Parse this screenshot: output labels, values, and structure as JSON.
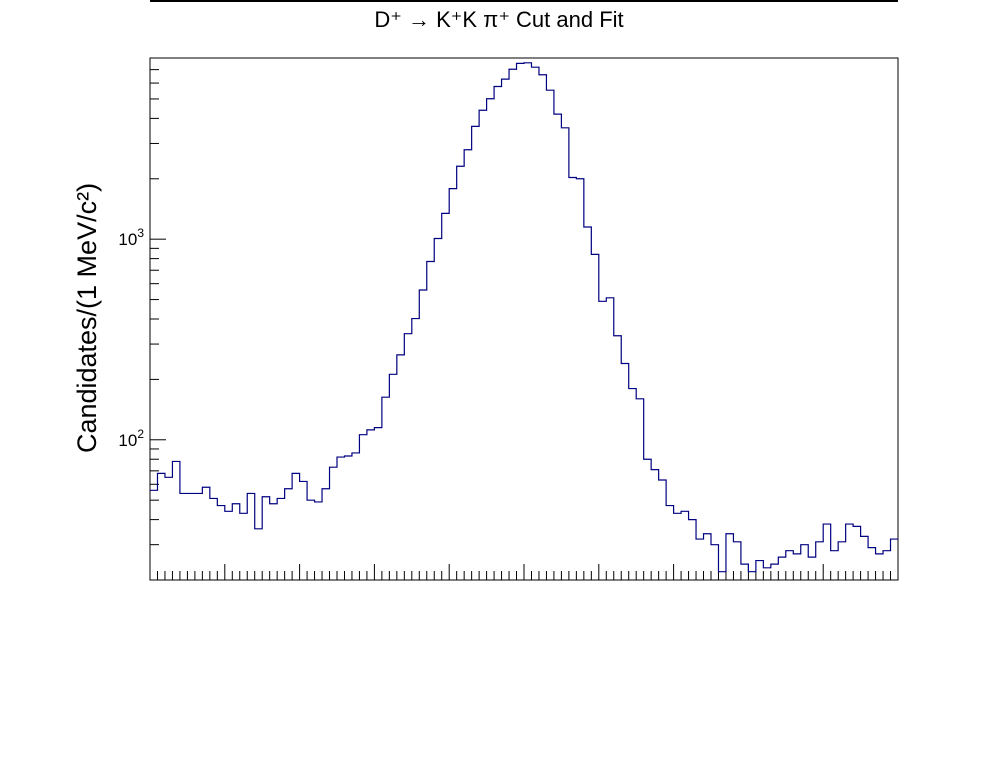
{
  "chart_data": {
    "type": "histogram",
    "title": "D⁺ → K⁺K π⁺ Cut and Fit",
    "ylabel": "Candidates/(1 MeV/c²)",
    "xlabel": "",
    "yscale": "log",
    "ylim": [
      20,
      8000
    ],
    "y_tick_labels": [
      {
        "value": 100,
        "base": "10",
        "exp": "2"
      },
      {
        "value": 1000,
        "base": "10",
        "exp": "3"
      }
    ],
    "x_tick_labels": [],
    "grid": false,
    "line_color": "#000080",
    "bin_count": 100,
    "values": [
      56,
      68,
      65,
      78,
      54,
      54,
      54,
      58,
      51,
      47,
      44,
      48,
      43,
      54,
      36,
      52,
      48,
      51,
      57,
      68,
      62,
      50,
      49,
      57,
      73,
      82,
      83,
      86,
      106,
      112,
      115,
      163,
      212,
      265,
      338,
      402,
      558,
      774,
      1008,
      1344,
      1787,
      2310,
      2790,
      3650,
      4390,
      5010,
      5770,
      6280,
      7030,
      7520,
      7570,
      7200,
      6600,
      5530,
      4200,
      3590,
      2030,
      2000,
      1150,
      840,
      490,
      510,
      330,
      240,
      180,
      160,
      80,
      71,
      63,
      47,
      43,
      44,
      40,
      32,
      34,
      30,
      22,
      34,
      31,
      24,
      22,
      25,
      23,
      24,
      26,
      28,
      27,
      30,
      26,
      31,
      38,
      28,
      31,
      38,
      37,
      33,
      29,
      27,
      28,
      32
    ]
  }
}
